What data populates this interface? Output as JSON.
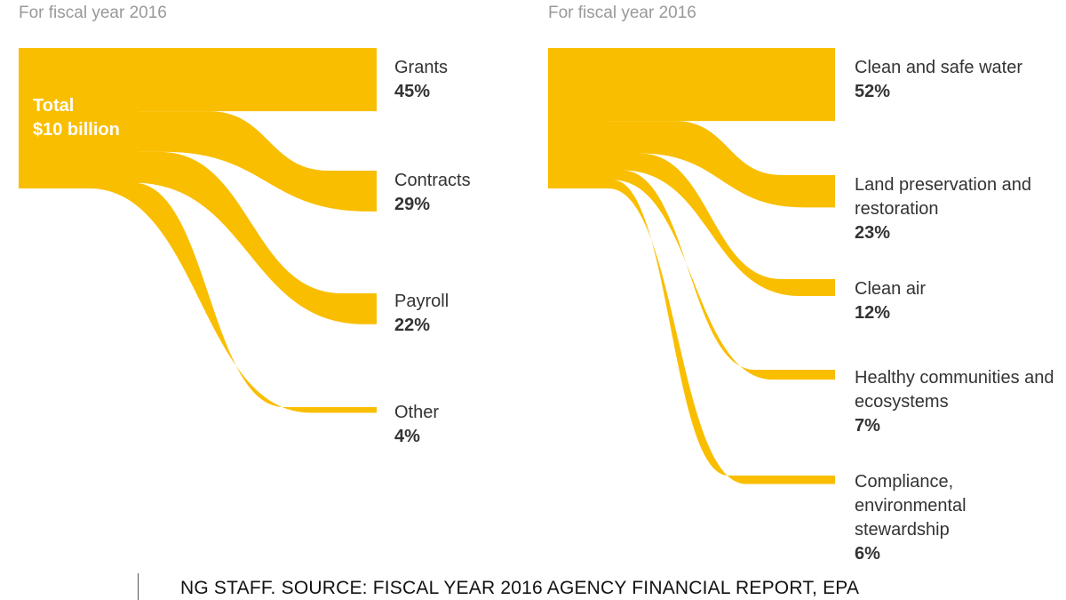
{
  "accent_color": "#F9BE00",
  "footer": "NG STAFF. SOURCE: FISCAL YEAR 2016 AGENCY FINANCIAL REPORT, EPA",
  "chart_data": [
    {
      "type": "sankey",
      "subtitle": "For fiscal year 2016",
      "source": {
        "line1": "Total",
        "line2": "$10 billion"
      },
      "flows": [
        {
          "name": "Grants",
          "value": 45,
          "label": "45%"
        },
        {
          "name": "Contracts",
          "value": 29,
          "label": "29%"
        },
        {
          "name": "Payroll",
          "value": 22,
          "label": "22%"
        },
        {
          "name": "Other",
          "value": 4,
          "label": "4%"
        }
      ]
    },
    {
      "type": "sankey",
      "subtitle": "For fiscal year 2016",
      "flows": [
        {
          "name": "Clean and safe water",
          "value": 52,
          "label": "52%"
        },
        {
          "name": "Land preservation and restoration",
          "value": 23,
          "label": "23%"
        },
        {
          "name": "Clean air",
          "value": 12,
          "label": "12%"
        },
        {
          "name": "Healthy communities and ecosystems",
          "value": 7,
          "label": "7%"
        },
        {
          "name": "Compliance, environmental stewardship",
          "value": 6,
          "label": "6%"
        }
      ]
    }
  ]
}
